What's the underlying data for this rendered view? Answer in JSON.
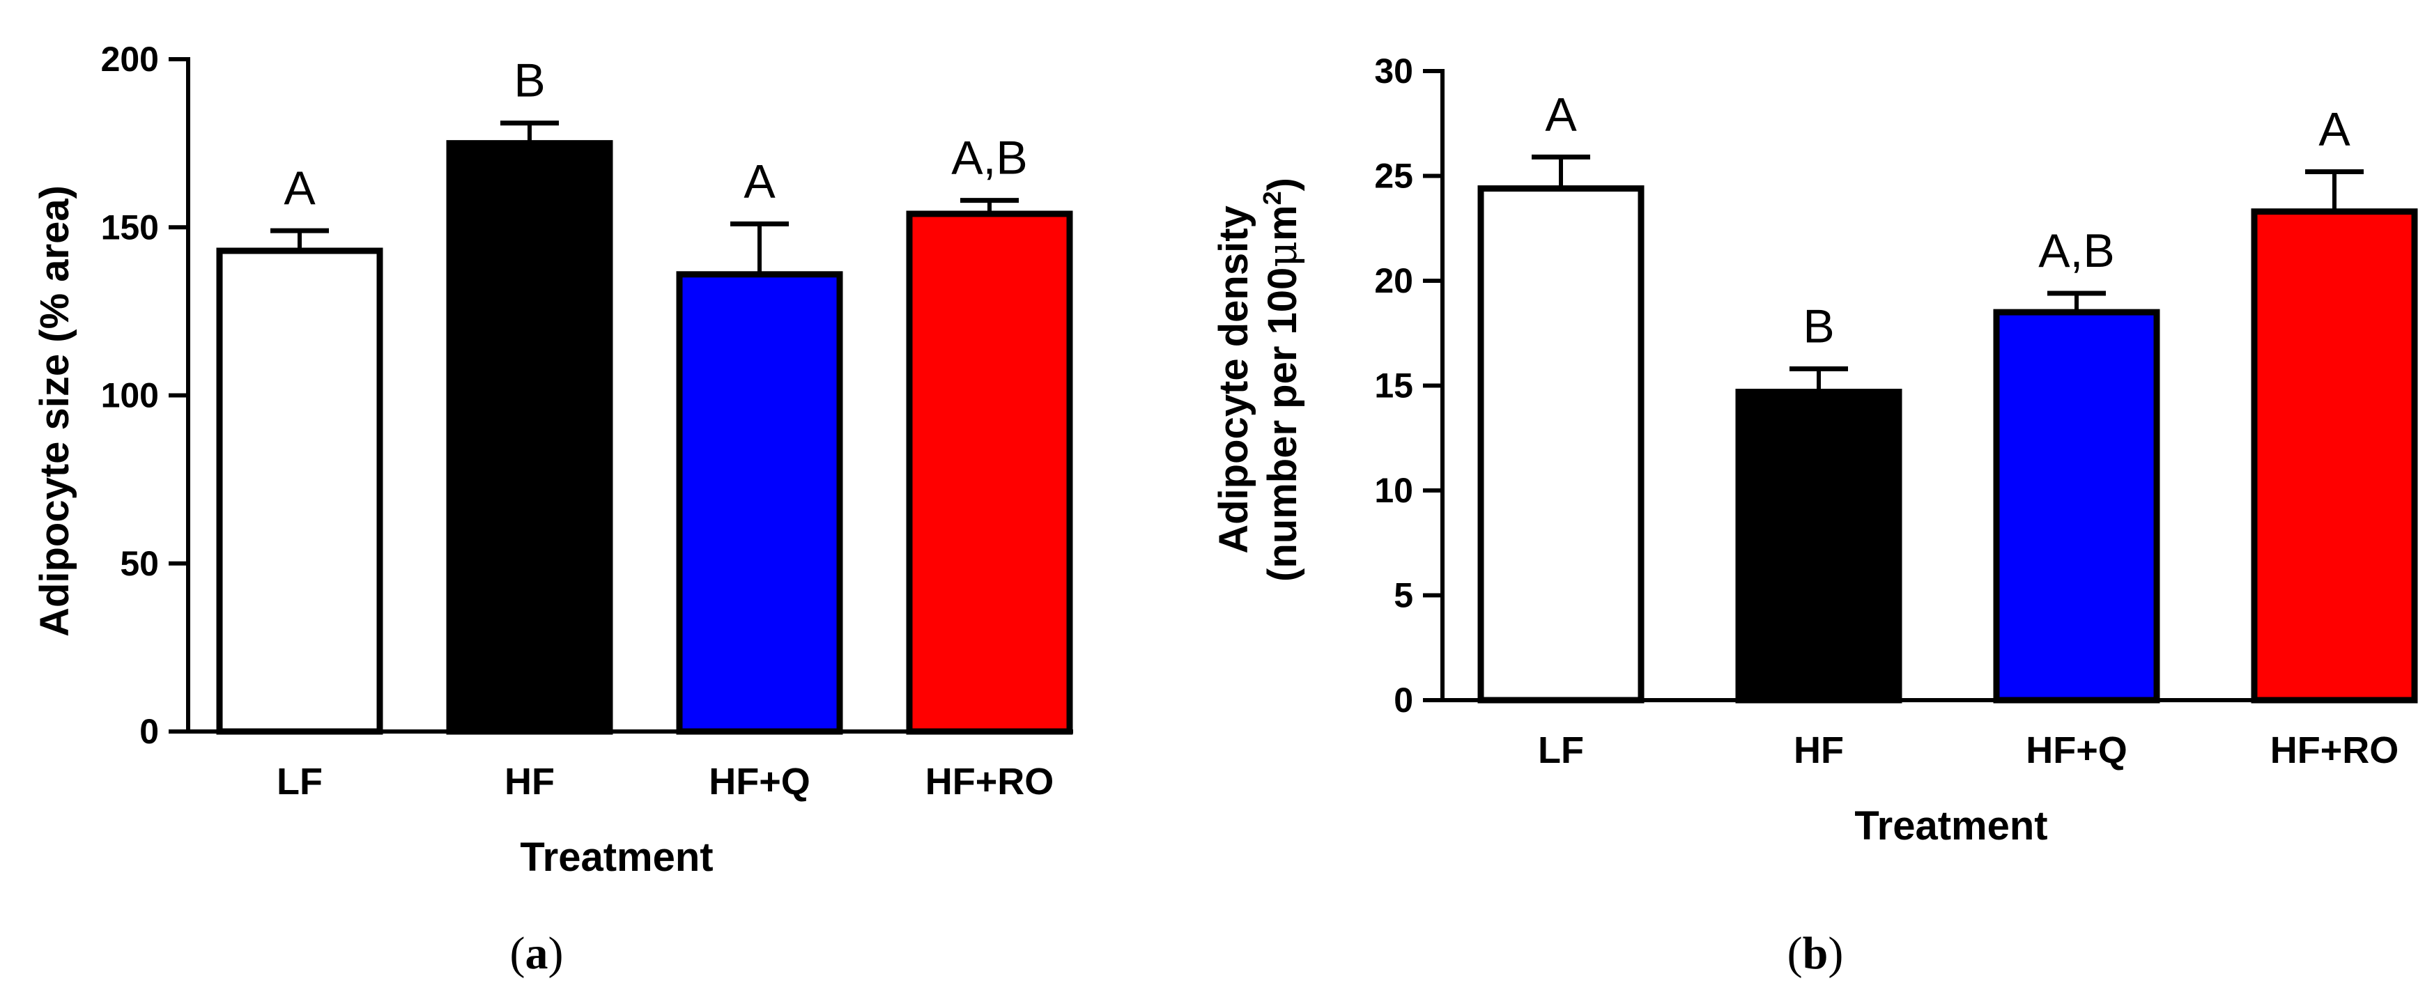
{
  "chart_data": [
    {
      "type": "bar",
      "panel": "a",
      "categories": [
        "LF",
        "HF",
        "HF+Q",
        "HF+RO"
      ],
      "values": [
        143,
        175,
        136,
        154
      ],
      "errors": [
        6,
        6,
        15,
        4
      ],
      "significance": [
        "A",
        "B",
        "A",
        "A,B"
      ],
      "bar_colors": [
        "#ffffff",
        "#000000",
        "#0000ff",
        "#ff0000"
      ],
      "xlabel": "Treatment",
      "ylabel": "Adipocyte size (% area)",
      "ylim": [
        0,
        200
      ],
      "yticks": [
        0,
        50,
        100,
        150,
        200
      ],
      "grid": false
    },
    {
      "type": "bar",
      "panel": "b",
      "categories": [
        "LF",
        "HF",
        "HF+Q",
        "HF+RO"
      ],
      "values": [
        24.4,
        14.7,
        18.5,
        23.3
      ],
      "errors": [
        1.5,
        1.1,
        0.9,
        1.9
      ],
      "significance": [
        "A",
        "B",
        "A,B",
        "A"
      ],
      "bar_colors": [
        "#ffffff",
        "#000000",
        "#0000ff",
        "#ff0000"
      ],
      "xlabel": "Treatment",
      "ylabel_line1": "Adipocyte density",
      "ylabel_line2_prefix": "(number per 100",
      "ylabel_line2_mu": "μ",
      "ylabel_line2_unit": "m",
      "ylabel_line2_sup": "2",
      "ylabel_line2_suffix": ")",
      "ylim": [
        0,
        30
      ],
      "yticks": [
        0,
        5,
        10,
        15,
        20,
        25,
        30
      ],
      "grid": false
    }
  ],
  "panel_labels": {
    "a": {
      "open": "(",
      "letter": "a",
      "close": ")"
    },
    "b": {
      "open": "(",
      "letter": "b",
      "close": ")"
    }
  }
}
